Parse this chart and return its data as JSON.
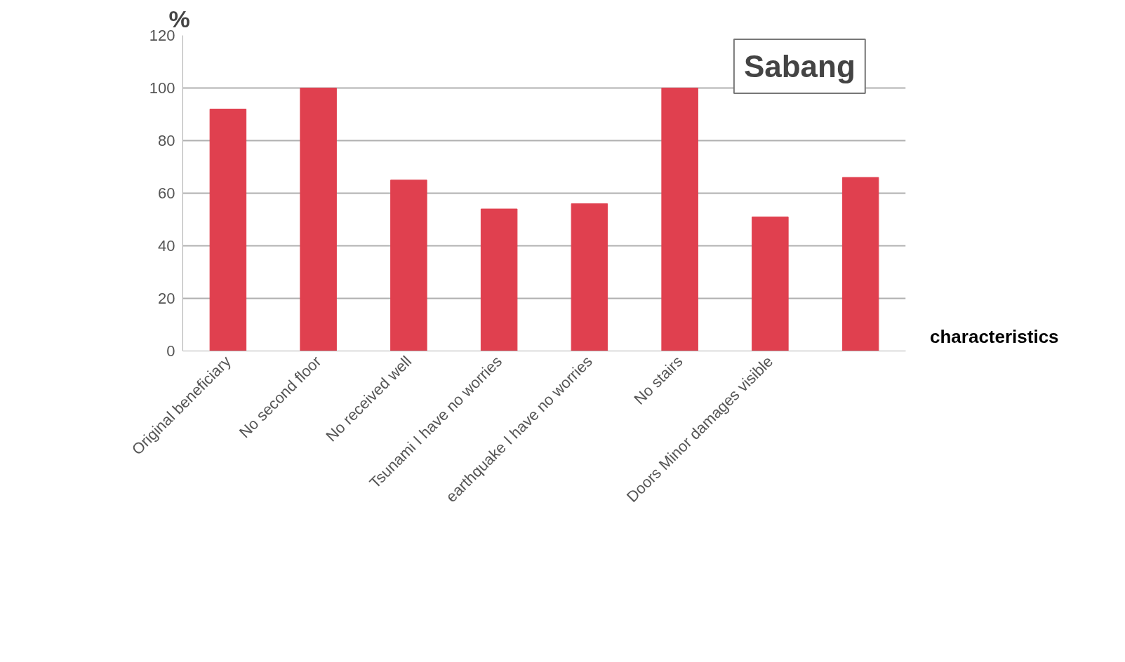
{
  "chart_data": {
    "type": "bar",
    "title": "Sabang",
    "ylabel": "%",
    "xlabel": "characteristics",
    "categories": [
      "Original beneficiary",
      "No second floor",
      "No received well",
      "Tsunami I have no worries",
      "earthquake I have no worries",
      "No stairs",
      "Doors Minor damages visible",
      null
    ],
    "values": [
      92,
      100,
      65,
      54,
      56,
      100,
      51,
      66
    ],
    "color": "#e0404f",
    "ylim": [
      0,
      120
    ],
    "yticks": [
      0,
      20,
      40,
      60,
      80,
      100,
      120
    ],
    "grid": "y"
  }
}
